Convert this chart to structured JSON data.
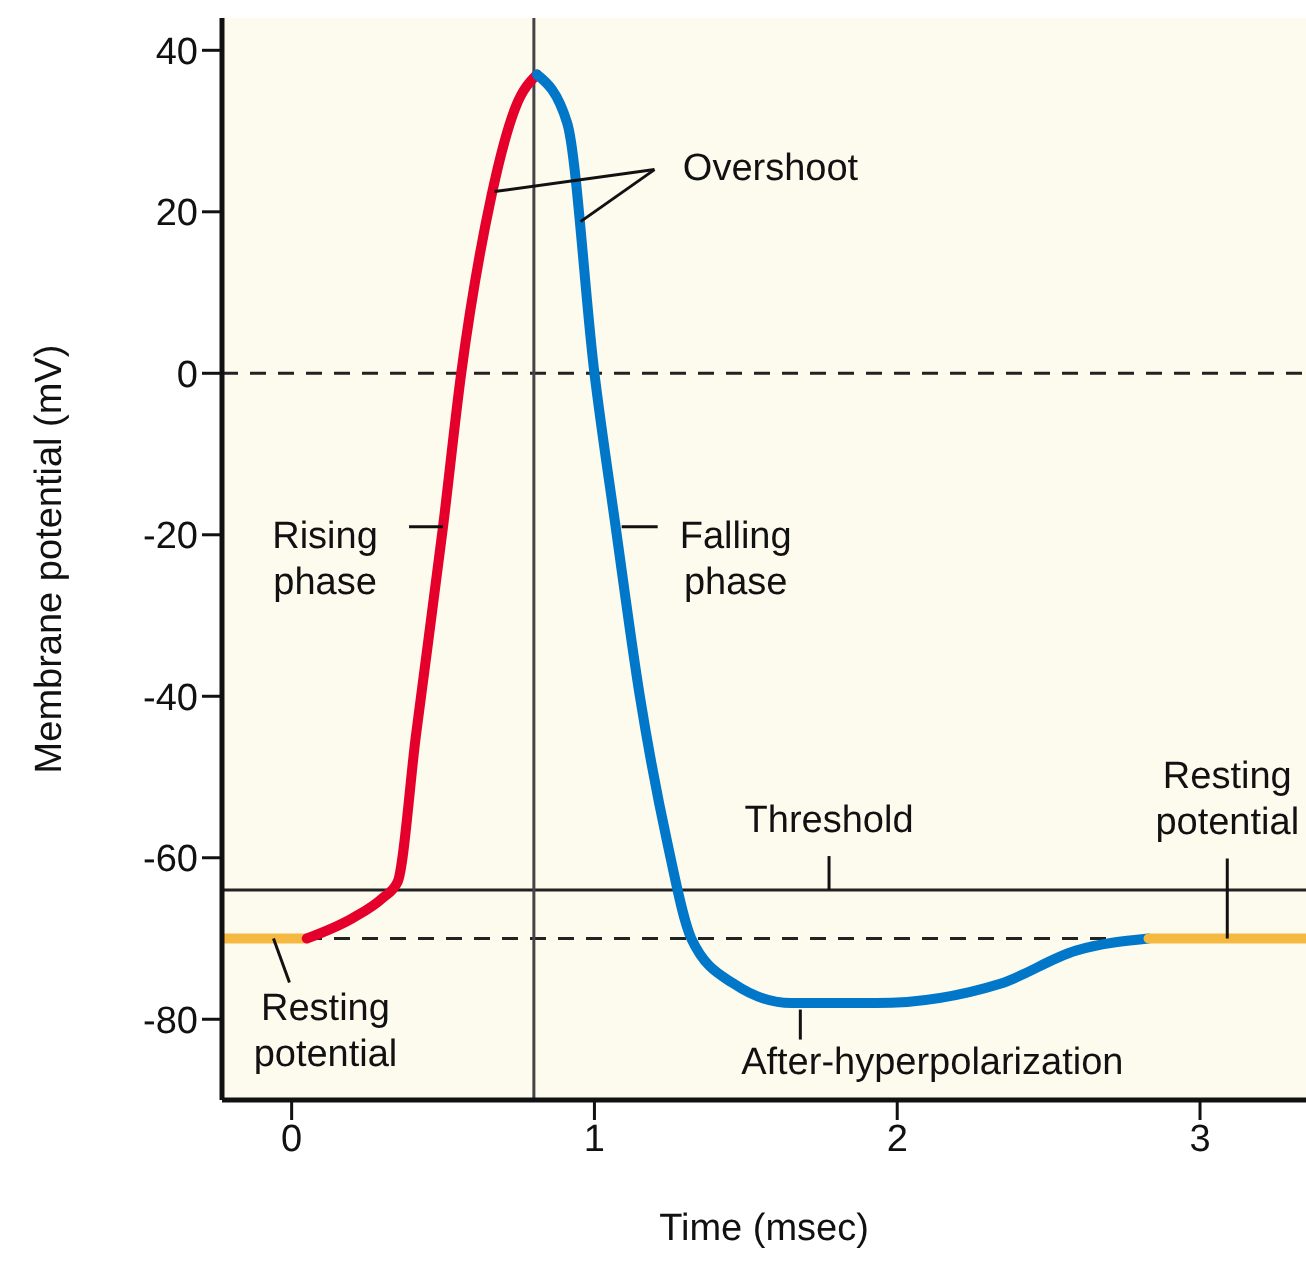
{
  "chart_data": {
    "type": "line",
    "xlabel": "Time (msec)",
    "ylabel": "Membrane potential (mV)",
    "xlim": [
      -0.23,
      3.35
    ],
    "ylim": [
      -90,
      44
    ],
    "xticks": [
      0,
      1,
      2,
      3
    ],
    "yticks": [
      -80,
      -60,
      -40,
      -20,
      0,
      20,
      40
    ],
    "grid": false,
    "marker": "none",
    "line_style": "solid",
    "series": [
      {
        "color": "#f5b942",
        "x": [
          -0.23,
          0.05
        ],
        "values": [
          -70,
          -70
        ]
      },
      {
        "color": "#e4002b",
        "x": [
          0.05,
          0.2,
          0.3,
          0.35,
          0.41,
          0.5,
          0.56,
          0.66,
          0.74,
          0.81
        ],
        "values": [
          -70,
          -67.5,
          -65,
          -63,
          -45,
          -19,
          0,
          22,
          33,
          37
        ]
      },
      {
        "color": "#0077c8",
        "x": [
          0.81,
          0.91,
          1.0,
          1.07,
          1.15,
          1.24,
          1.32,
          1.46,
          1.65,
          1.93,
          2.34,
          2.59,
          2.83
        ],
        "values": [
          37,
          31,
          0,
          -19,
          -40,
          -58,
          -70,
          -75.6,
          -78,
          -78,
          -75.6,
          -71.5,
          -70
        ]
      },
      {
        "color": "#f5b942",
        "x": [
          2.83,
          3.35
        ],
        "values": [
          -70,
          -70
        ]
      }
    ],
    "ref_lines": [
      {
        "axis": "y",
        "value": 0,
        "color": "#222222",
        "line_style": "dashed"
      },
      {
        "axis": "y",
        "value": -70,
        "color": "#222222",
        "line_style": "dashed"
      },
      {
        "axis": "y",
        "value": -64,
        "label": "Threshold",
        "color": "#222222",
        "line_style": "solid"
      },
      {
        "axis": "x",
        "value": 0.8,
        "color": "#444444",
        "line_style": "solid"
      }
    ],
    "annotations": [
      {
        "text": "Overshoot",
        "x": 0.67,
        "y": 22.5
      },
      {
        "text": "Rising phase",
        "x": 0.5,
        "y": -19
      },
      {
        "text": "Falling phase",
        "x": 1.09,
        "y": -19
      },
      {
        "text": "Resting potential",
        "x": -0.06,
        "y": -70
      },
      {
        "text": "After-hyperpolarization",
        "x": 1.68,
        "y": -78.8
      },
      {
        "text": "Resting potential",
        "x": 3.09,
        "y": -70
      }
    ]
  }
}
